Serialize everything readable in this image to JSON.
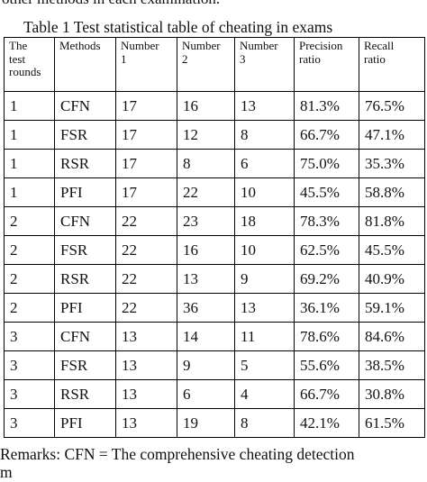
{
  "clipped_top_text": "other methods in each examination.",
  "caption": "Table 1 Test statistical table of cheating in exams",
  "table": {
    "headers": [
      [
        "The",
        "test",
        "rounds"
      ],
      [
        "Methods"
      ],
      [
        "Number",
        "1"
      ],
      [
        "Number",
        "2"
      ],
      [
        "Number",
        "3"
      ],
      [
        "Precision",
        "ratio"
      ],
      [
        "Recall",
        "ratio"
      ]
    ],
    "rows": [
      [
        "1",
        "CFN",
        "17",
        "16",
        "13",
        "81.3%",
        "76.5%"
      ],
      [
        "1",
        "FSR",
        "17",
        "12",
        "8",
        "66.7%",
        "47.1%"
      ],
      [
        "1",
        "RSR",
        "17",
        "8",
        "6",
        "75.0%",
        "35.3%"
      ],
      [
        "1",
        "PFI",
        "17",
        "22",
        "10",
        "45.5%",
        "58.8%"
      ],
      [
        "2",
        "CFN",
        "22",
        "23",
        "18",
        "78.3%",
        "81.8%"
      ],
      [
        "2",
        "FSR",
        "22",
        "16",
        "10",
        "62.5%",
        "45.5%"
      ],
      [
        "2",
        "RSR",
        "22",
        "13",
        "9",
        "69.2%",
        "40.9%"
      ],
      [
        "2",
        "PFI",
        "22",
        "36",
        "13",
        "36.1%",
        "59.1%"
      ],
      [
        "3",
        "CFN",
        "13",
        "14",
        "11",
        "78.6%",
        "84.6%"
      ],
      [
        "3",
        "FSR",
        "13",
        "9",
        "5",
        "55.6%",
        "38.5%"
      ],
      [
        "3",
        "RSR",
        "13",
        "6",
        "4",
        "66.7%",
        "30.8%"
      ],
      [
        "3",
        "PFI",
        "13",
        "19",
        "8",
        "42.1%",
        "61.5%"
      ]
    ]
  },
  "remarks": "Remarks: CFN = The comprehensive cheating detection"
}
